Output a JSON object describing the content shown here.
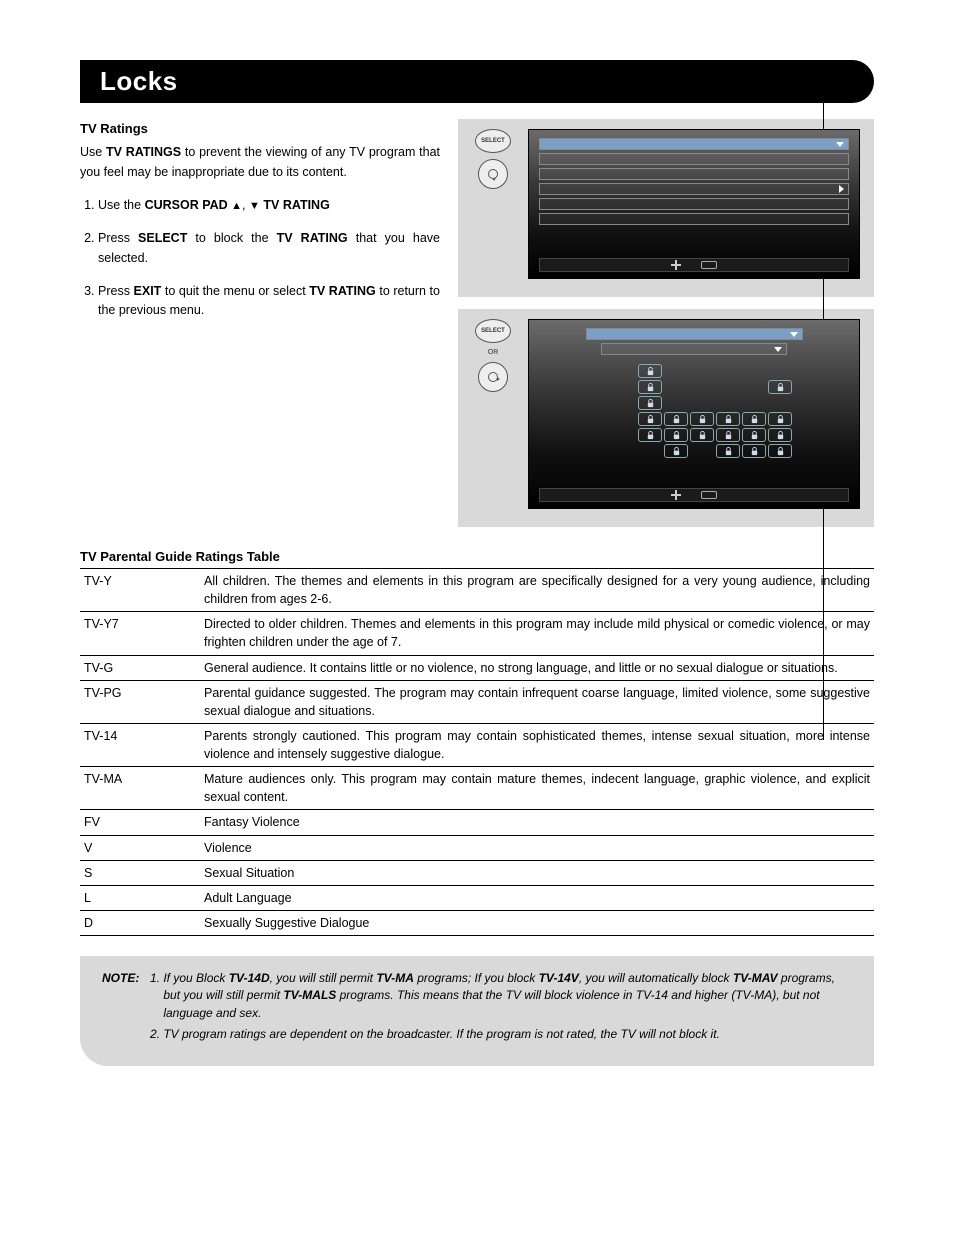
{
  "header": {
    "title": "Locks"
  },
  "intro": {
    "heading": "TV Ratings",
    "p1_a": "Use ",
    "p1_b": "TV RATINGS",
    "p1_c": " to prevent the viewing of any TV program that you feel may be inappropriate due to its content."
  },
  "steps": {
    "s1_a": "Use the ",
    "s1_b": "CURSOR PAD",
    "s1_c": " ",
    "s1_up": "▲",
    "s1_comma": ", ",
    "s1_dn": "▼",
    "s1_d": " ",
    "s1_e": "TV RATING",
    "s2_a": "Press ",
    "s2_b": "SELECT",
    "s2_c": " to block the ",
    "s2_d": "TV RATING",
    "s2_e": " that you have selected.",
    "s3_a": "Press ",
    "s3_b": "EXIT",
    "s3_c": " to quit the menu or select ",
    "s3_d": "TV RATING",
    "s3_e": " to return to the previous menu."
  },
  "buttons": {
    "select_label": "SELECT",
    "or_label": "OR"
  },
  "ratings_table": {
    "heading": "TV Parental Guide Ratings Table",
    "rows": [
      {
        "code": "TV-Y",
        "desc": "All children. The themes and elements in this program are specifically designed for a very young audience, including children from ages 2-6."
      },
      {
        "code": "TV-Y7",
        "desc": "Directed to older children. Themes and elements in this program may include mild physical or comedic violence, or may frighten children under the age of 7."
      },
      {
        "code": "TV-G",
        "desc": "General audience. It contains little or no violence, no strong language, and little or no sexual dialogue or situations."
      },
      {
        "code": "TV-PG",
        "desc": "Parental guidance suggested. The program may contain infrequent coarse language, limited violence, some suggestive sexual dialogue and situations."
      },
      {
        "code": "TV-14",
        "desc": "Parents strongly cautioned. This program may contain sophisticated themes, intense sexual situation, more intense violence and intensely suggestive dialogue."
      },
      {
        "code": "TV-MA",
        "desc": "Mature audiences only. This program may contain mature themes, indecent language, graphic violence, and explicit sexual content."
      },
      {
        "code": "FV",
        "desc": "Fantasy Violence"
      },
      {
        "code": "V",
        "desc": "Violence"
      },
      {
        "code": "S",
        "desc": "Sexual Situation"
      },
      {
        "code": "L",
        "desc": "Adult Language"
      },
      {
        "code": "D",
        "desc": "Sexually Suggestive Dialogue"
      }
    ]
  },
  "note": {
    "label": "NOTE:",
    "n1_a": "If you Block ",
    "n1_b": "TV-14D",
    "n1_c": ", you will still permit ",
    "n1_d": "TV-MA",
    "n1_e": " programs; If you block ",
    "n1_f": "TV-14V",
    "n1_g": ", you will automatically block ",
    "n1_h": "TV-MAV",
    "n1_i": " programs, but you will still permit ",
    "n1_j": "TV-MALS",
    "n1_k": " programs. This means that the TV will block violence in TV-14 and higher (TV-MA), but not language and sex.",
    "n2": "TV program ratings are dependent on the broadcaster. If the program is not rated, the TV will not block it."
  },
  "screen1": {
    "rows": [
      {
        "highlight": true,
        "arrow": "down"
      },
      {
        "highlight": false,
        "arrow": null
      },
      {
        "highlight": false,
        "arrow": null
      },
      {
        "highlight": false,
        "arrow": "right"
      },
      {
        "highlight": false,
        "arrow": null
      },
      {
        "highlight": false,
        "arrow": null
      }
    ]
  },
  "screen2": {
    "top_rows": [
      {
        "highlight": true,
        "arrow": "down"
      },
      {
        "highlight": false,
        "arrow": "down"
      }
    ],
    "lock_grid": [
      [
        1,
        0,
        0,
        0,
        0,
        0
      ],
      [
        1,
        0,
        0,
        0,
        0,
        1
      ],
      [
        1,
        0,
        0,
        0,
        0,
        0
      ],
      [
        1,
        1,
        1,
        1,
        1,
        1
      ],
      [
        1,
        1,
        1,
        1,
        1,
        1
      ],
      [
        0,
        1,
        0,
        1,
        1,
        1
      ]
    ],
    "colors": {
      "screen_bg_top": "#6b6b6b",
      "screen_bg_bottom": "#000000",
      "panel_bg": "#d9d9d9",
      "highlight": "#7aa0c8",
      "lock_border": "#88aaaa"
    }
  }
}
